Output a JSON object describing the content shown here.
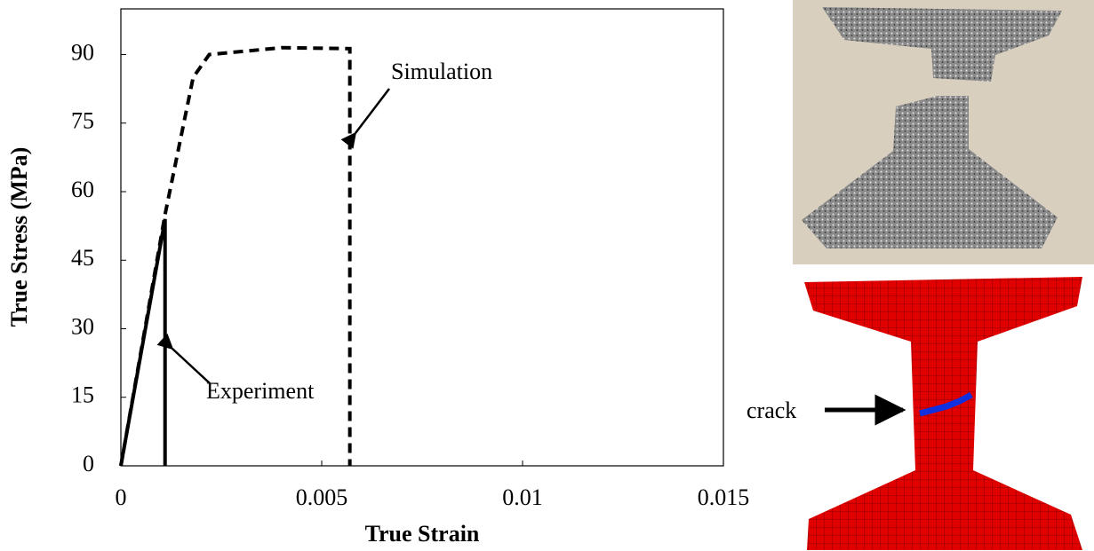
{
  "chart_data": {
    "type": "line",
    "xlabel": "True Strain",
    "ylabel": "True Stress (MPa)",
    "xlim": [
      0,
      0.015
    ],
    "ylim": [
      0,
      100
    ],
    "xticks": [
      0,
      0.005,
      0.01,
      0.015
    ],
    "yticks": [
      0,
      15,
      30,
      45,
      60,
      75,
      90
    ],
    "series": [
      {
        "name": "Experiment",
        "color": "#000000",
        "dashed": false,
        "x": [
          0,
          0.0011,
          0.0011
        ],
        "values": [
          0,
          54,
          0
        ]
      },
      {
        "name": "Simulation",
        "color": "#000000",
        "dashed": true,
        "x": [
          0,
          0.0011,
          0.0018,
          0.0022,
          0.004,
          0.0057,
          0.0057
        ],
        "values": [
          0,
          55,
          85,
          90,
          91.5,
          91.3,
          0
        ]
      }
    ],
    "figure_label": "crack"
  }
}
